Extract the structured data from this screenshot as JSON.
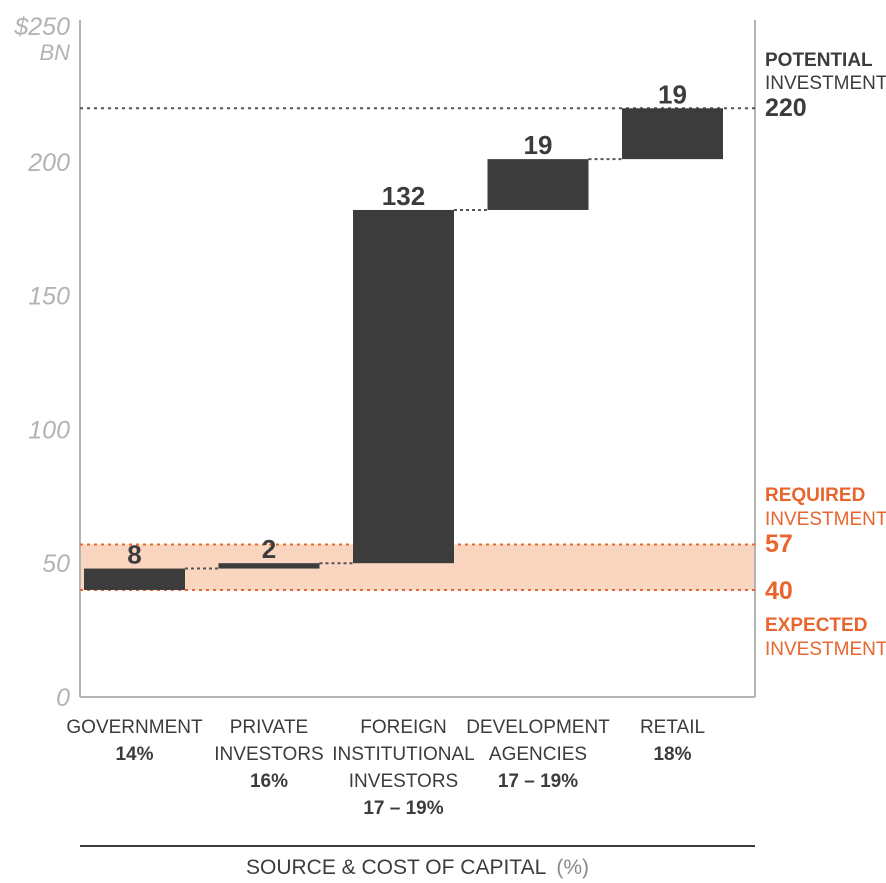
{
  "chart_data": {
    "type": "waterfall",
    "y_unit_top": "$250",
    "y_unit_bottom": "BN",
    "ylim": [
      0,
      250
    ],
    "yticks": [
      0,
      50,
      100,
      150,
      200
    ],
    "bars": [
      {
        "category_lines": [
          "GOVERNMENT"
        ],
        "cost": [
          "14%"
        ],
        "label": "8",
        "start": 40,
        "value": 8
      },
      {
        "category_lines": [
          "PRIVATE",
          "INVESTORS"
        ],
        "cost": [
          "16%"
        ],
        "label": "2",
        "start": 48,
        "value": 2
      },
      {
        "category_lines": [
          "FOREIGN",
          "INSTITUTIONAL",
          "INVESTORS"
        ],
        "cost": [
          "17 – 19%"
        ],
        "label": "132",
        "start": 50,
        "value": 132
      },
      {
        "category_lines": [
          "DEVELOPMENT",
          "AGENCIES"
        ],
        "cost": [
          "17 – 19%"
        ],
        "label": "19",
        "start": 182,
        "value": 19
      },
      {
        "category_lines": [
          "RETAIL"
        ],
        "cost": [
          "18%"
        ],
        "label": "19",
        "start": 201,
        "value": 19
      }
    ],
    "potential": {
      "title": "POTENTIAL",
      "subtitle": "INVESTMENT",
      "value": 220,
      "value_label": "220"
    },
    "required": {
      "title": "REQUIRED",
      "subtitle": "INVESTMENT",
      "value": 57,
      "value_label": "57"
    },
    "expected": {
      "value": 40,
      "value_label": "40",
      "title": "EXPECTED",
      "subtitle": "INVESTMENT"
    },
    "xtitle_main": "SOURCE & COST OF CAPITAL",
    "xtitle_unit": "(%)",
    "colors": {
      "bar": "#3c3c3c",
      "band": "#fad5c0",
      "accent": "#e8652e",
      "axis": "#b3b3b3",
      "text": "#3c3c3c"
    }
  }
}
